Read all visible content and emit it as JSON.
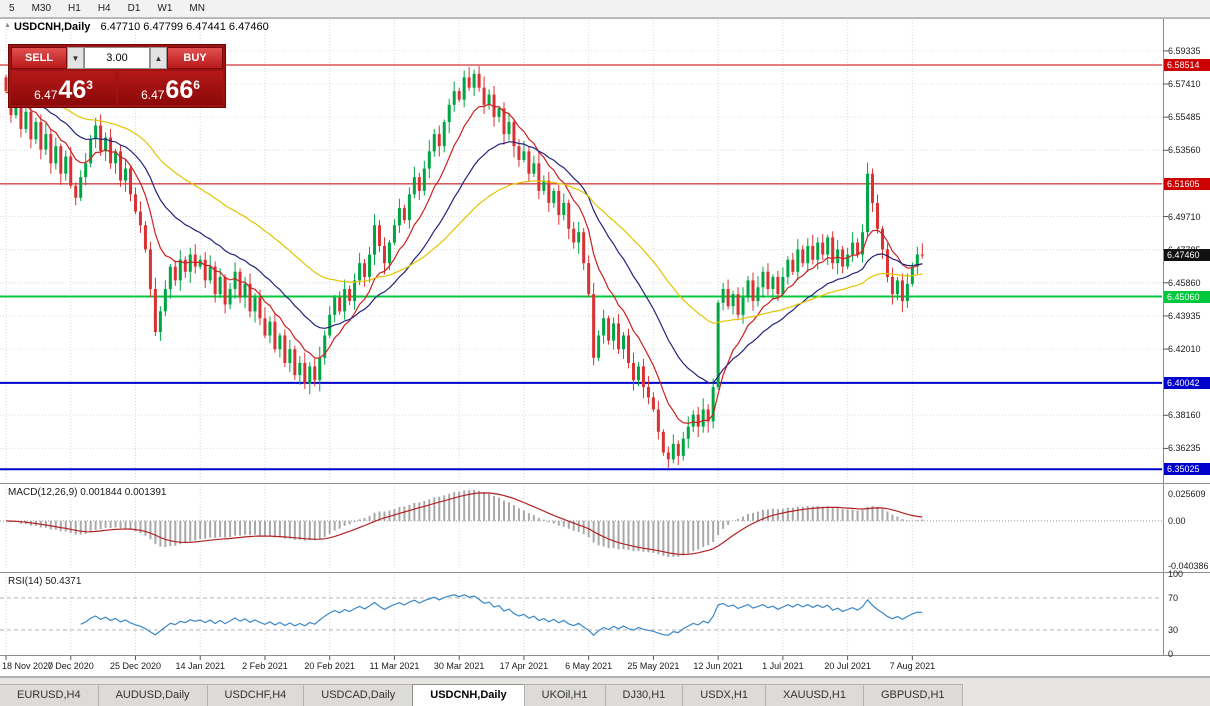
{
  "toolbar": {
    "timeframes": [
      "5",
      "M30",
      "H1",
      "H4",
      "D1",
      "W1",
      "MN"
    ]
  },
  "chart": {
    "symbol_title": "USDCNH,Daily",
    "ohlc_readout": "6.47710 6.47799 6.47441 6.47460"
  },
  "trade_panel": {
    "sell_label": "SELL",
    "buy_label": "BUY",
    "volume": "3.00",
    "down_arrow": "▼",
    "up_arrow": "▲",
    "sell_price_small": "6.47",
    "sell_price_big": "46",
    "sell_price_sup": "3",
    "buy_price_small": "6.47",
    "buy_price_big": "66",
    "buy_price_sup": "6"
  },
  "tabs": [
    {
      "label": "EURUSD,H4",
      "active": false
    },
    {
      "label": "AUDUSD,Daily",
      "active": false
    },
    {
      "label": "USDCHF,H4",
      "active": false
    },
    {
      "label": "USDCAD,Daily",
      "active": false
    },
    {
      "label": "USDCNH,Daily",
      "active": true
    },
    {
      "label": "UKOil,H1",
      "active": false
    },
    {
      "label": "DJ30,H1",
      "active": false
    },
    {
      "label": "USDX,H1",
      "active": false
    },
    {
      "label": "XAUUSD,H1",
      "active": false
    },
    {
      "label": "GBPUSD,H1",
      "active": false
    }
  ],
  "chart_data": {
    "type": "candlestick",
    "symbol": "USDCNH",
    "timeframe": "Daily",
    "up_color": "#00a544",
    "down_color": "#da3232",
    "x_dates": [
      "18 Nov 2020",
      "7 Dec 2020",
      "25 Dec 2020",
      "14 Jan 2021",
      "2 Feb 2021",
      "20 Feb 2021",
      "11 Mar 2021",
      "30 Mar 2021",
      "17 Apr 2021",
      "6 May 2021",
      "25 May 2021",
      "12 Jun 2021",
      "1 Jul 2021",
      "20 Jul 2021",
      "7 Aug 2021"
    ],
    "bars_per_tick": 13,
    "first_open": 6.578,
    "closes": [
      6.57,
      6.556,
      6.565,
      6.548,
      6.558,
      6.542,
      6.552,
      6.536,
      6.545,
      6.528,
      6.538,
      6.522,
      6.532,
      6.515,
      6.508,
      6.52,
      6.528,
      6.542,
      6.55,
      6.535,
      6.543,
      6.528,
      6.535,
      6.518,
      6.525,
      6.51,
      6.5,
      6.492,
      6.478,
      6.455,
      6.43,
      6.442,
      6.455,
      6.468,
      6.46,
      6.472,
      6.465,
      6.475,
      6.468,
      6.472,
      6.46,
      6.468,
      6.452,
      6.462,
      6.446,
      6.455,
      6.465,
      6.45,
      6.458,
      6.442,
      6.45,
      6.438,
      6.428,
      6.436,
      6.42,
      6.428,
      6.412,
      6.42,
      6.405,
      6.412,
      6.4,
      6.41,
      6.402,
      6.415,
      6.428,
      6.44,
      6.45,
      6.442,
      6.455,
      6.448,
      6.46,
      6.47,
      6.462,
      6.475,
      6.492,
      6.48,
      6.47,
      6.482,
      6.492,
      6.502,
      6.495,
      6.51,
      6.52,
      6.512,
      6.525,
      6.535,
      6.545,
      6.538,
      6.552,
      6.562,
      6.57,
      6.565,
      6.578,
      6.572,
      6.58,
      6.572,
      6.562,
      6.568,
      6.555,
      6.56,
      6.545,
      6.552,
      6.538,
      6.53,
      6.535,
      6.522,
      6.528,
      6.512,
      6.518,
      6.505,
      6.512,
      6.498,
      6.505,
      6.49,
      6.482,
      6.488,
      6.47,
      6.452,
      6.415,
      6.428,
      6.438,
      6.425,
      6.435,
      6.42,
      6.428,
      6.412,
      6.402,
      6.41,
      6.398,
      6.392,
      6.385,
      6.372,
      6.36,
      6.356,
      6.365,
      6.358,
      6.368,
      6.375,
      6.382,
      6.375,
      6.385,
      6.378,
      6.398,
      6.447,
      6.455,
      6.445,
      6.452,
      6.44,
      6.45,
      6.46,
      6.448,
      6.456,
      6.465,
      6.455,
      6.462,
      6.452,
      6.462,
      6.472,
      6.465,
      6.478,
      6.47,
      6.48,
      6.472,
      6.482,
      6.475,
      6.485,
      6.47,
      6.478,
      6.468,
      6.475,
      6.482,
      6.475,
      6.488,
      6.522,
      6.505,
      6.49,
      6.478,
      6.462,
      6.452,
      6.46,
      6.448,
      6.458,
      6.468,
      6.475,
      6.4746
    ],
    "moving_averages": [
      {
        "name": "fast",
        "period": 10,
        "color": "#cc2020"
      },
      {
        "name": "medium",
        "period": 24,
        "color": "#23237e"
      },
      {
        "name": "slow",
        "period": 52,
        "color": "#e3c400"
      }
    ],
    "price_axis": {
      "ylim": [
        6.344,
        6.6055
      ],
      "ticks": [
        "6.59335",
        "6.57410",
        "6.55485",
        "6.53560",
        "6.51635",
        "6.49710",
        "6.47785",
        "6.45860",
        "6.43935",
        "6.42010",
        "6.40085",
        "6.38160",
        "6.36235"
      ]
    },
    "price_lines": [
      {
        "value": "6.58514",
        "price": 6.58514,
        "color": "#cc0000",
        "width": 1,
        "draw_line": true
      },
      {
        "value": "6.51605",
        "price": 6.51605,
        "color": "#cc0000",
        "width": 1,
        "draw_line": true
      },
      {
        "value": "6.47460",
        "price": 6.4746,
        "color": "#111111",
        "width": 1,
        "draw_line": false
      },
      {
        "value": "6.45060",
        "price": 6.4506,
        "color": "#00c83c",
        "width": 2,
        "draw_line": true
      },
      {
        "value": "6.40042",
        "price": 6.40042,
        "color": "#0000cc",
        "width": 2,
        "draw_line": true
      },
      {
        "value": "6.35025",
        "price": 6.35025,
        "color": "#0000cc",
        "width": 2,
        "draw_line": true
      }
    ],
    "macd": {
      "label": "MACD(12,26,9) 0.001844 0.001391",
      "params": [
        12,
        26,
        9
      ],
      "histogram_color": "#a8a8a8",
      "signal_color": "#b22222",
      "axis": [
        "0.025609",
        "0.00",
        "-0.040386"
      ]
    },
    "rsi": {
      "label": "RSI(14) 50.4371",
      "period": 14,
      "line_color": "#3a87c8",
      "levels": [
        70,
        30
      ],
      "axis": [
        "100",
        "70",
        "30",
        "0"
      ]
    }
  }
}
